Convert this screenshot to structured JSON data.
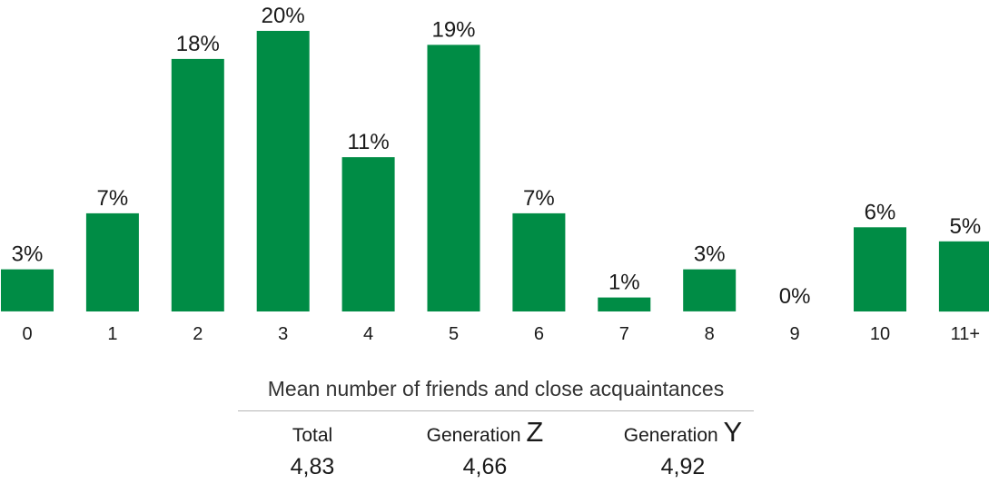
{
  "chart_data": {
    "type": "bar",
    "categories": [
      "0",
      "1",
      "2",
      "3",
      "4",
      "5",
      "6",
      "7",
      "8",
      "9",
      "10",
      "11+"
    ],
    "values": [
      3,
      7,
      18,
      20,
      11,
      19,
      7,
      1,
      3,
      0,
      6,
      5
    ],
    "value_labels": [
      "3%",
      "7%",
      "18%",
      "20%",
      "11%",
      "19%",
      "7%",
      "1%",
      "3%",
      "0%",
      "6%",
      "5%"
    ],
    "title": "",
    "xlabel": "",
    "ylabel": "",
    "ylim": [
      0,
      20
    ],
    "grid": false,
    "colors": {
      "bar": "#008c45"
    }
  },
  "mean": {
    "title": "Mean number of friends and close acquaintances",
    "columns": [
      {
        "label": "Total",
        "letter": "",
        "value": "4,83"
      },
      {
        "label": "Generation ",
        "letter": "Z",
        "value": "4,66"
      },
      {
        "label": "Generation ",
        "letter": "Y",
        "value": "4,92"
      }
    ]
  }
}
